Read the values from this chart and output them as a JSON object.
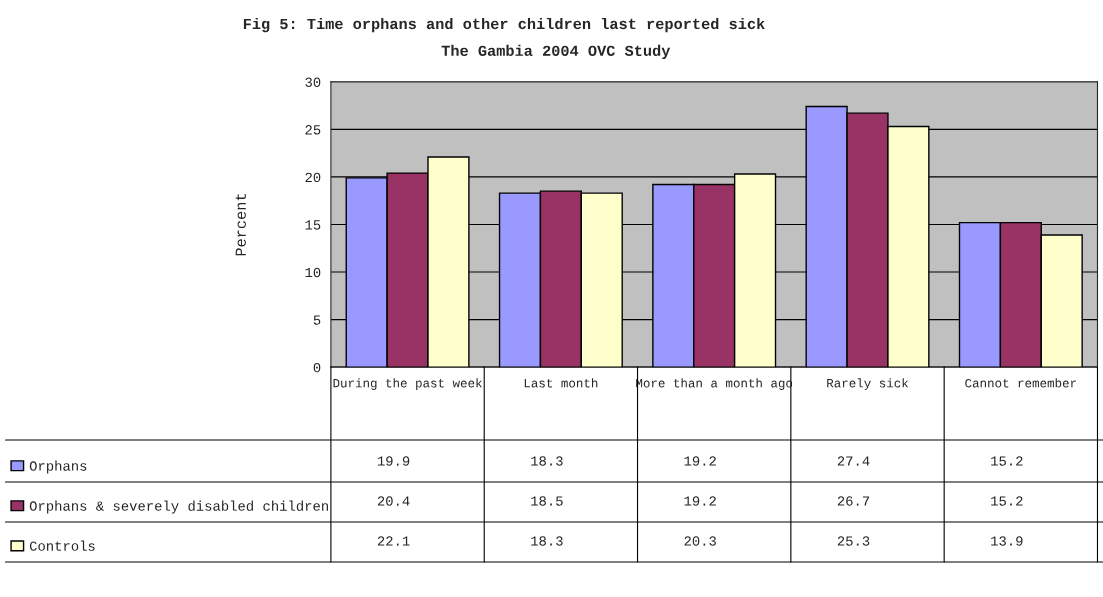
{
  "chart_data": {
    "type": "bar",
    "title": "Fig 5: Time orphans and other children last reported sick",
    "subtitle": "The Gambia 2004 OVC Study",
    "ylabel": "Percent",
    "categories": [
      "During the past week",
      "Last month",
      "More than a month ago",
      "Rarely sick",
      "Cannot remember"
    ],
    "series": [
      {
        "name": "Orphans",
        "color": "#9999ff",
        "values": [
          19.9,
          18.3,
          19.2,
          27.4,
          15.2
        ]
      },
      {
        "name": "Orphans & severely disabled children",
        "color": "#993366",
        "values": [
          20.4,
          18.5,
          19.2,
          26.7,
          15.2
        ]
      },
      {
        "name": "Controls",
        "color": "#ffffcc",
        "values": [
          22.1,
          18.3,
          20.3,
          25.3,
          13.9
        ]
      }
    ],
    "ylim": [
      0,
      30
    ],
    "yticks": [
      0,
      5,
      10,
      15,
      20,
      25,
      30
    ],
    "grid": "y",
    "legend": "bottom left",
    "data_labels": true
  }
}
